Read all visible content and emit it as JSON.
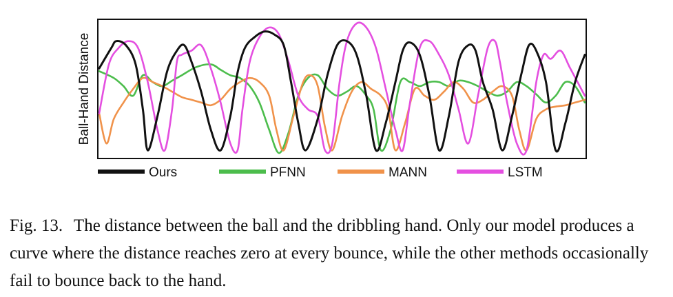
{
  "chart_data": {
    "type": "line",
    "title": "",
    "xlabel": "",
    "ylabel": "Ball-Hand Distance",
    "xlim": [
      0,
      100
    ],
    "ylim": [
      0,
      100
    ],
    "grid": false,
    "legend_placement": "bottom",
    "series": [
      {
        "name": "Ours",
        "color": "#111111",
        "x": [
          0,
          2.5,
          3.5,
          5.5,
          7.5,
          9,
          10,
          12,
          14,
          16,
          17.5,
          19,
          21,
          23,
          25,
          27,
          28.5,
          30,
          32,
          34,
          36,
          38,
          39.5,
          41,
          42.5,
          45,
          47,
          49,
          51,
          53,
          55,
          57,
          59,
          61,
          62.5,
          64,
          66,
          68,
          70,
          72,
          74,
          76,
          77.5,
          79,
          81,
          83,
          85,
          87,
          88.5,
          90,
          92,
          94,
          96,
          98,
          100
        ],
        "y": [
          65,
          80,
          85,
          82,
          68,
          35,
          5,
          30,
          63,
          78,
          82,
          70,
          48,
          20,
          5,
          30,
          62,
          80,
          88,
          92,
          90,
          82,
          55,
          25,
          5,
          28,
          60,
          82,
          85,
          75,
          45,
          5,
          25,
          55,
          78,
          84,
          75,
          45,
          5,
          30,
          70,
          82,
          78,
          55,
          35,
          5,
          30,
          62,
          82,
          78,
          55,
          5,
          25,
          55,
          75
        ]
      },
      {
        "name": "PFNN",
        "color": "#4cbd4c",
        "x": [
          0,
          3,
          5,
          7,
          9,
          11,
          13,
          15,
          17,
          20,
          23,
          25,
          27,
          29,
          31,
          33,
          35,
          37,
          39,
          41,
          43,
          45,
          47,
          49,
          51,
          53,
          55,
          56.5,
          58,
          60,
          62,
          64,
          66,
          68,
          70,
          72,
          74,
          76,
          78,
          80,
          82,
          84,
          86,
          88,
          90,
          92,
          94,
          96,
          98,
          100
        ],
        "y": [
          63,
          58,
          52,
          45,
          60,
          55,
          52,
          56,
          60,
          66,
          68,
          64,
          60,
          58,
          52,
          40,
          20,
          3,
          18,
          45,
          58,
          60,
          50,
          45,
          48,
          52,
          45,
          35,
          5,
          20,
          55,
          55,
          52,
          55,
          55,
          52,
          56,
          55,
          52,
          48,
          45,
          48,
          55,
          52,
          46,
          40,
          45,
          55,
          52,
          40
        ]
      },
      {
        "name": "MANN",
        "color": "#f0924a",
        "x": [
          0,
          1.5,
          3,
          5,
          7,
          9,
          11,
          13,
          15,
          17,
          19,
          21,
          23,
          25,
          27,
          29,
          31,
          33,
          35,
          36.5,
          38,
          40,
          42,
          43.5,
          45,
          46.5,
          48,
          50,
          52,
          54,
          56,
          58,
          59.5,
          61,
          63,
          65,
          67,
          69,
          71,
          73,
          75,
          77,
          79,
          81,
          83,
          85,
          86.5,
          88,
          90,
          92,
          94,
          96,
          98,
          100
        ],
        "y": [
          32,
          10,
          28,
          40,
          50,
          58,
          55,
          52,
          48,
          44,
          42,
          40,
          38,
          42,
          50,
          55,
          58,
          55,
          45,
          20,
          5,
          30,
          55,
          60,
          52,
          22,
          5,
          30,
          48,
          55,
          50,
          45,
          35,
          5,
          25,
          50,
          45,
          42,
          48,
          55,
          50,
          40,
          42,
          48,
          52,
          45,
          20,
          5,
          28,
          35,
          37,
          38,
          40,
          42
        ]
      },
      {
        "name": "LSTM",
        "color": "#e44fe0",
        "x": [
          0,
          2,
          4,
          6,
          8,
          10,
          12,
          13.5,
          15,
          16,
          17,
          19,
          21,
          23,
          25,
          27,
          28.5,
          29.5,
          31,
          33,
          35,
          37,
          39,
          41,
          43,
          45,
          46.5,
          48,
          49.5,
          51,
          53,
          55,
          57,
          59,
          61,
          62.5,
          64,
          66,
          68,
          70,
          72,
          74,
          76,
          78,
          80,
          81.5,
          82.5,
          84,
          86,
          88,
          90,
          91.5,
          93,
          95,
          97,
          100
        ],
        "y": [
          32,
          68,
          80,
          85,
          80,
          55,
          20,
          5,
          35,
          70,
          75,
          78,
          82,
          65,
          40,
          10,
          5,
          35,
          70,
          88,
          95,
          90,
          70,
          45,
          35,
          30,
          5,
          10,
          55,
          85,
          98,
          95,
          80,
          50,
          20,
          5,
          40,
          80,
          85,
          75,
          60,
          35,
          10,
          45,
          80,
          85,
          70,
          40,
          10,
          5,
          55,
          75,
          72,
          78,
          65,
          45
        ]
      }
    ],
    "legend": [
      "Ours",
      "PFNN",
      "MANN",
      "LSTM"
    ]
  },
  "caption": {
    "label": "Fig. 13.",
    "text": "The distance between the ball and the dribbling hand. Only our model produces a curve where the distance reaches zero at every bounce, while the other methods occasionally fail to bounce back to the hand."
  }
}
